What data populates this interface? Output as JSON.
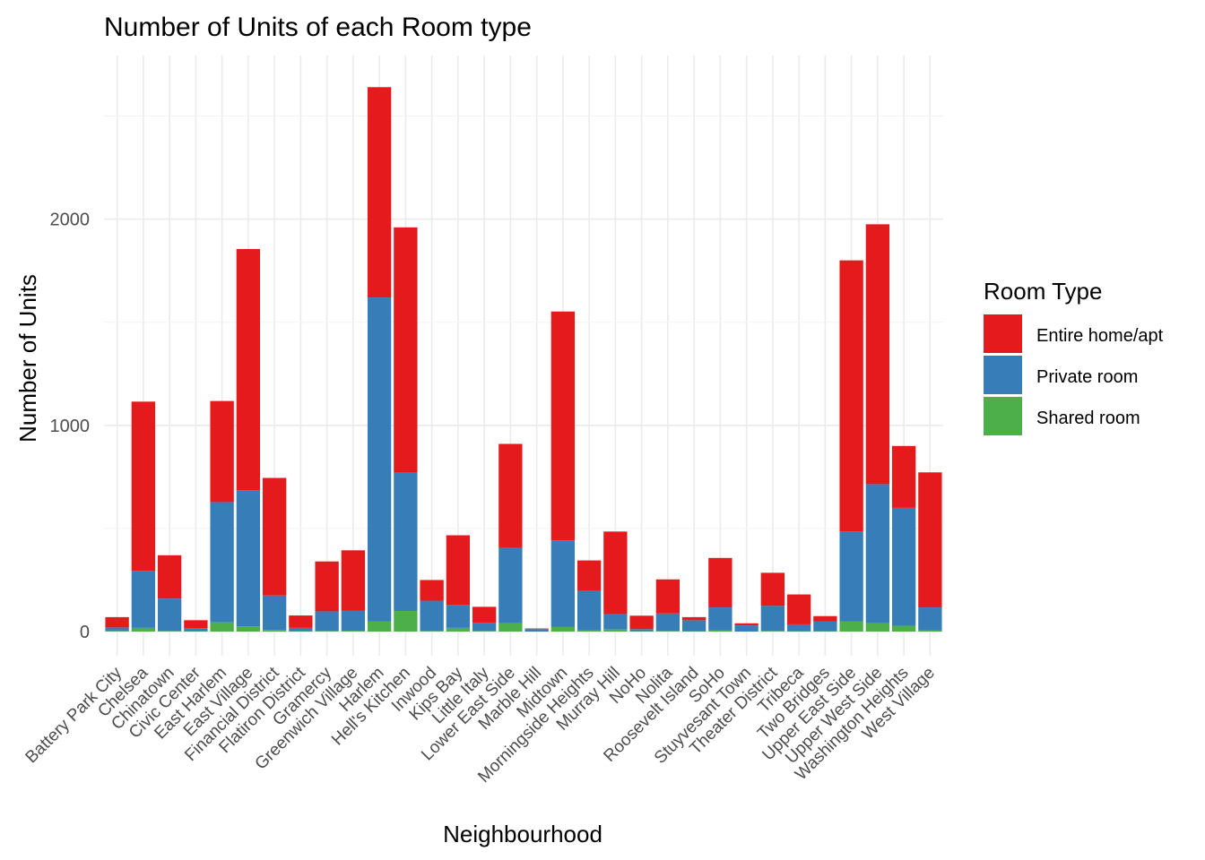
{
  "chart_data": {
    "type": "bar",
    "stacked": true,
    "title": "Number of Units of each Room type",
    "xlabel": "Neighbourhood",
    "ylabel": "Number of Units",
    "ylim": [
      0,
      2750
    ],
    "yticks": [
      0,
      1000,
      2000
    ],
    "grid": true,
    "legend_position": "right",
    "legend_title": "Room Type",
    "categories": [
      "Battery Park City",
      "Chelsea",
      "Chinatown",
      "Civic Center",
      "East Harlem",
      "East Village",
      "Financial District",
      "Flatiron District",
      "Gramercy",
      "Greenwich Village",
      "Harlem",
      "Hell's Kitchen",
      "Inwood",
      "Kips Bay",
      "Little Italy",
      "Lower East Side",
      "Marble Hill",
      "Midtown",
      "Morningside Heights",
      "Murray Hill",
      "NoHo",
      "Nolita",
      "Roosevelt Island",
      "SoHo",
      "Stuyvesant Town",
      "Theater District",
      "Tribeca",
      "Two Bridges",
      "Upper East Side",
      "Upper West Side",
      "Washington Heights",
      "West Village"
    ],
    "series": [
      {
        "name": "Shared room",
        "color": "#4daf4a",
        "values": [
          3,
          18,
          3,
          2,
          45,
          25,
          8,
          2,
          3,
          4,
          50,
          100,
          3,
          18,
          3,
          40,
          0,
          22,
          5,
          10,
          2,
          3,
          2,
          5,
          0,
          3,
          2,
          2,
          50,
          40,
          28,
          5
        ]
      },
      {
        "name": "Private room",
        "color": "#377eb8",
        "values": [
          17,
          277,
          157,
          15,
          583,
          660,
          167,
          16,
          95,
          98,
          1570,
          670,
          147,
          112,
          40,
          365,
          12,
          420,
          193,
          75,
          10,
          85,
          53,
          112,
          30,
          122,
          33,
          48,
          435,
          675,
          572,
          112
        ]
      },
      {
        "name": "Entire home/apt",
        "color": "#e41a1c",
        "values": [
          50,
          820,
          210,
          38,
          490,
          1170,
          570,
          60,
          242,
          292,
          1020,
          1190,
          100,
          337,
          77,
          505,
          3,
          1110,
          147,
          400,
          65,
          165,
          15,
          240,
          10,
          160,
          145,
          25,
          1315,
          1260,
          300,
          655
        ]
      }
    ]
  }
}
